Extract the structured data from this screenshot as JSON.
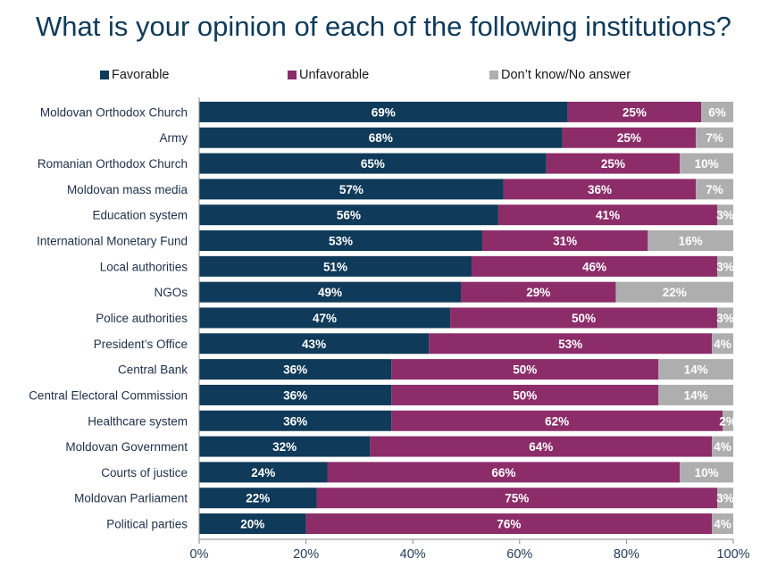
{
  "title": "What is your opinion of each of the following institutions?",
  "colors": {
    "favorable": "#0f3a59",
    "unfavorable": "#8c2d6a",
    "dont_know": "#aeaeae",
    "axis": "#8a8a8a",
    "title": "#0e3a5a"
  },
  "legend": [
    {
      "name": "Favorable",
      "color": "#0f3a59"
    },
    {
      "name": "Unfavorable",
      "color": "#8c2d6a"
    },
    {
      "name": "Don’t know/No answer",
      "color": "#aeaeae"
    }
  ],
  "chart_data": {
    "type": "bar",
    "orientation": "horizontal",
    "stacked": true,
    "title": "What is your opinion of each of the following institutions?",
    "categories": [
      "Moldovan Orthodox Church",
      "Army",
      "Romanian Orthodox Church",
      "Moldovan mass media",
      "Education system",
      "International Monetary Fund",
      "Local authorities",
      "NGOs",
      "Police authorities",
      "President’s Office",
      "Central Bank",
      "Central Electoral Commission",
      "Healthcare system",
      "Moldovan Government",
      "Courts of justice",
      "Moldovan Parliament",
      "Political parties"
    ],
    "series": [
      {
        "name": "Favorable",
        "values": [
          69,
          68,
          65,
          57,
          56,
          53,
          51,
          49,
          47,
          43,
          36,
          36,
          36,
          32,
          24,
          22,
          20
        ]
      },
      {
        "name": "Unfavorable",
        "values": [
          25,
          25,
          25,
          36,
          41,
          31,
          46,
          29,
          50,
          53,
          50,
          50,
          62,
          64,
          66,
          75,
          76
        ]
      },
      {
        "name": "Don’t know/No answer",
        "values": [
          6,
          7,
          10,
          7,
          3,
          16,
          3,
          22,
          3,
          4,
          14,
          14,
          2,
          4,
          10,
          3,
          4
        ]
      }
    ],
    "value_suffix": "%",
    "xlim": [
      0,
      100
    ],
    "xticks": [
      "0%",
      "20%",
      "40%",
      "60%",
      "80%",
      "100%"
    ],
    "legend_position": "top",
    "grid": false
  }
}
